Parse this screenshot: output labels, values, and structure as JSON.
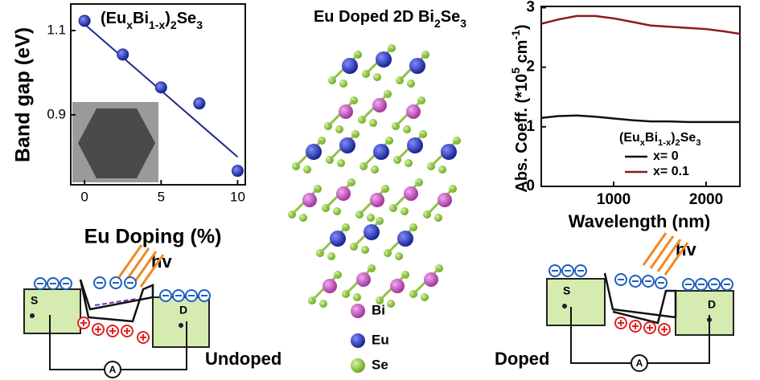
{
  "chart_data": [
    {
      "type": "scatter",
      "title": [
        "(Eu",
        "x",
        "Bi",
        "1-x",
        ")",
        "2",
        "Se",
        "3"
      ],
      "x_label": "Eu Doping (%)",
      "y_label": "Band gap (eV)",
      "x": [
        0,
        2.5,
        5,
        7.5,
        10
      ],
      "y": [
        1.123,
        1.043,
        0.965,
        0.927,
        0.767
      ],
      "fit_line": {
        "x": [
          0,
          10
        ],
        "y": [
          1.115,
          0.8
        ]
      },
      "color": "#1f2a8a",
      "xlim": [
        -0.9,
        10.5
      ],
      "ylim": [
        0.734,
        1.163
      ],
      "xticks": [
        0,
        5,
        10
      ],
      "yticks": [
        0.9,
        1.1
      ]
    },
    {
      "type": "line",
      "x_label": "Wavelength (nm)",
      "y_label": [
        "Abs. Coeff. (*10",
        "5",
        " cm",
        "-1",
        ")"
      ],
      "legend_title": [
        "(Eu",
        "x",
        "Bi",
        "1-x",
        ")",
        "2",
        "Se",
        "3"
      ],
      "x": [
        220,
        400,
        600,
        800,
        1000,
        1200,
        1400,
        1600,
        1800,
        2000,
        2200,
        2365
      ],
      "series": [
        {
          "name": "x= 0",
          "color": "#111111",
          "values": [
            1.15,
            1.18,
            1.19,
            1.17,
            1.14,
            1.11,
            1.09,
            1.09,
            1.08,
            1.08,
            1.08,
            1.08
          ]
        },
        {
          "name": "x= 0.1",
          "color": "#8b1a1a",
          "values": [
            2.73,
            2.8,
            2.86,
            2.86,
            2.82,
            2.76,
            2.7,
            2.68,
            2.66,
            2.64,
            2.6,
            2.56
          ]
        }
      ],
      "xlim": [
        217,
        2365
      ],
      "ylim": [
        0,
        3.02
      ],
      "xticks": [
        1000,
        2000
      ],
      "yticks": [
        0,
        1,
        2,
        3
      ],
      "legend": "lower-right"
    }
  ],
  "structure": {
    "title": [
      "Eu Doped 2D Bi",
      "2",
      "Se",
      "3"
    ],
    "legend": [
      "Bi",
      "Eu",
      "Se"
    ]
  },
  "devices": {
    "left": {
      "light": "hv",
      "source": "S",
      "drain": "D",
      "meter": "A",
      "label": "Undoped"
    },
    "right": {
      "light": "hv",
      "source": "S",
      "drain": "D",
      "meter": "A",
      "label": "Doped"
    }
  }
}
